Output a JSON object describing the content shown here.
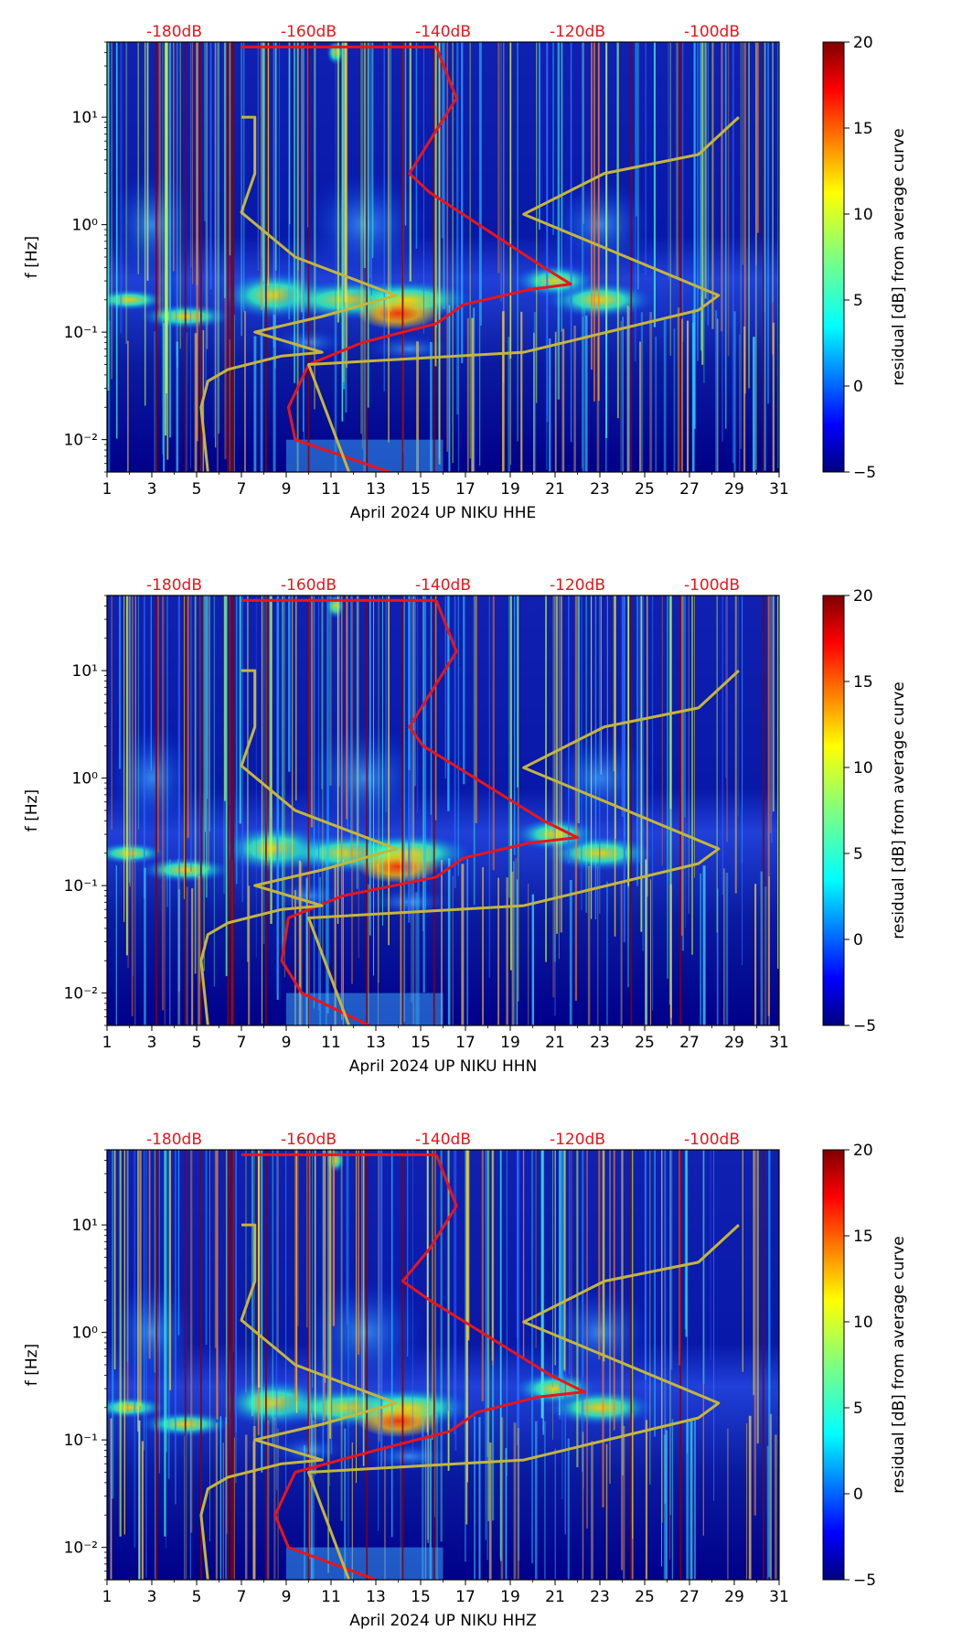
{
  "chart_data": [
    {
      "type": "heatmap",
      "station": "HHE",
      "xlabel": "April 2024 UP NIKU  HHE",
      "ylabel": "f [Hz]",
      "colorbar_label": "residual [dB] from average curve",
      "x_ticks": [
        "1",
        "3",
        "5",
        "7",
        "9",
        "11",
        "13",
        "15",
        "17",
        "19",
        "21",
        "23",
        "25",
        "27",
        "29",
        "31"
      ],
      "y_ticks": [
        "10⁻²",
        "10⁻¹",
        "10⁰",
        "10¹"
      ],
      "top_ticks": [
        "-180dB",
        "-160dB",
        "-140dB",
        "-120dB",
        "-100dB"
      ],
      "colorbar_ticks": [
        "20",
        "15",
        "10",
        "5",
        "0",
        "−5"
      ],
      "xlim": [
        1,
        31
      ],
      "ylim": [
        0.005,
        50
      ],
      "clim": [
        -5,
        20
      ],
      "series": [
        {
          "name": "average PSD curve (red, top dB axis)",
          "color": "#e8151b",
          "x_dB": [
            -148,
            -162,
            -163,
            -160,
            -152,
            -141,
            -137,
            -127,
            -121,
            -125,
            -142,
            -145,
            -142,
            -138,
            -141
          ],
          "f": [
            0.005,
            0.01,
            0.02,
            0.05,
            0.08,
            0.12,
            0.18,
            0.25,
            0.28,
            0.4,
            2,
            3,
            6,
            15,
            45
          ]
        },
        {
          "name": "NLNM/NHNM model (olive)",
          "color": "#c5b63a",
          "x_dB": [
            -175,
            -176,
            -175,
            -172,
            -164,
            -158,
            -168,
            -158,
            -147,
            -162,
            -170,
            -168,
            -168,
            -170
          ],
          "f": [
            0.005,
            0.02,
            0.035,
            0.045,
            0.06,
            0.065,
            0.1,
            0.14,
            0.22,
            0.5,
            1.3,
            3,
            10,
            10
          ]
        }
      ]
    },
    {
      "type": "heatmap",
      "station": "HHN",
      "xlabel": "April 2024 UP NIKU  HHN",
      "ylabel": "f [Hz]",
      "colorbar_label": "residual [dB] from average curve",
      "x_ticks": [
        "1",
        "3",
        "5",
        "7",
        "9",
        "11",
        "13",
        "15",
        "17",
        "19",
        "21",
        "23",
        "25",
        "27",
        "29",
        "31"
      ],
      "y_ticks": [
        "10⁻²",
        "10⁻¹",
        "10⁰",
        "10¹"
      ],
      "top_ticks": [
        "-180dB",
        "-160dB",
        "-140dB",
        "-120dB",
        "-100dB"
      ],
      "colorbar_ticks": [
        "20",
        "15",
        "10",
        "5",
        "0",
        "−5"
      ],
      "xlim": [
        1,
        31
      ],
      "ylim": [
        0.005,
        50
      ],
      "clim": [
        -5,
        20
      ],
      "series": [
        {
          "name": "average PSD curve (red, top dB axis)",
          "color": "#e8151b",
          "x_dB": [
            -151,
            -161,
            -164,
            -163,
            -155,
            -141,
            -137,
            -127,
            -120,
            -125,
            -143,
            -145,
            -142,
            -138,
            -141
          ],
          "f": [
            0.005,
            0.01,
            0.02,
            0.05,
            0.08,
            0.12,
            0.18,
            0.25,
            0.28,
            0.4,
            2,
            3,
            6,
            15,
            45
          ]
        },
        {
          "name": "NLNM/NHNM model (olive)",
          "color": "#c5b63a",
          "x_dB": [
            -175,
            -176,
            -175,
            -172,
            -164,
            -158,
            -168,
            -158,
            -147,
            -162,
            -170,
            -168,
            -168,
            -170
          ],
          "f": [
            0.005,
            0.02,
            0.035,
            0.045,
            0.06,
            0.065,
            0.1,
            0.14,
            0.22,
            0.5,
            1.3,
            3,
            10,
            10
          ]
        }
      ]
    },
    {
      "type": "heatmap",
      "station": "HHZ",
      "xlabel": "April 2024 UP NIKU  HHZ",
      "ylabel": "f [Hz]",
      "colorbar_label": "residual [dB] from average curve",
      "x_ticks": [
        "1",
        "3",
        "5",
        "7",
        "9",
        "11",
        "13",
        "15",
        "17",
        "19",
        "21",
        "23",
        "25",
        "27",
        "29",
        "31"
      ],
      "y_ticks": [
        "10⁻²",
        "10⁻¹",
        "10⁰",
        "10¹"
      ],
      "top_ticks": [
        "-180dB",
        "-160dB",
        "-140dB",
        "-120dB",
        "-100dB"
      ],
      "colorbar_ticks": [
        "20",
        "15",
        "10",
        "5",
        "0",
        "−5"
      ],
      "xlim": [
        1,
        31
      ],
      "ylim": [
        0.005,
        50
      ],
      "clim": [
        -5,
        20
      ],
      "series": [
        {
          "name": "average PSD curve (red, top dB axis)",
          "color": "#e8151b",
          "x_dB": [
            -150,
            -163,
            -165,
            -162,
            -150,
            -139,
            -135,
            -126,
            -119,
            -124,
            -142,
            -146,
            -142,
            -138,
            -141
          ],
          "f": [
            0.005,
            0.01,
            0.02,
            0.05,
            0.08,
            0.12,
            0.18,
            0.25,
            0.28,
            0.4,
            2,
            3,
            6,
            15,
            45
          ]
        },
        {
          "name": "NLNM/NHNM model (olive)",
          "color": "#c5b63a",
          "x_dB": [
            -175,
            -176,
            -175,
            -172,
            -164,
            -158,
            -168,
            -158,
            -147,
            -162,
            -170,
            -168,
            -168,
            -170
          ],
          "f": [
            0.005,
            0.02,
            0.035,
            0.045,
            0.06,
            0.065,
            0.1,
            0.14,
            0.22,
            0.5,
            1.3,
            3,
            10,
            10
          ]
        }
      ]
    }
  ]
}
